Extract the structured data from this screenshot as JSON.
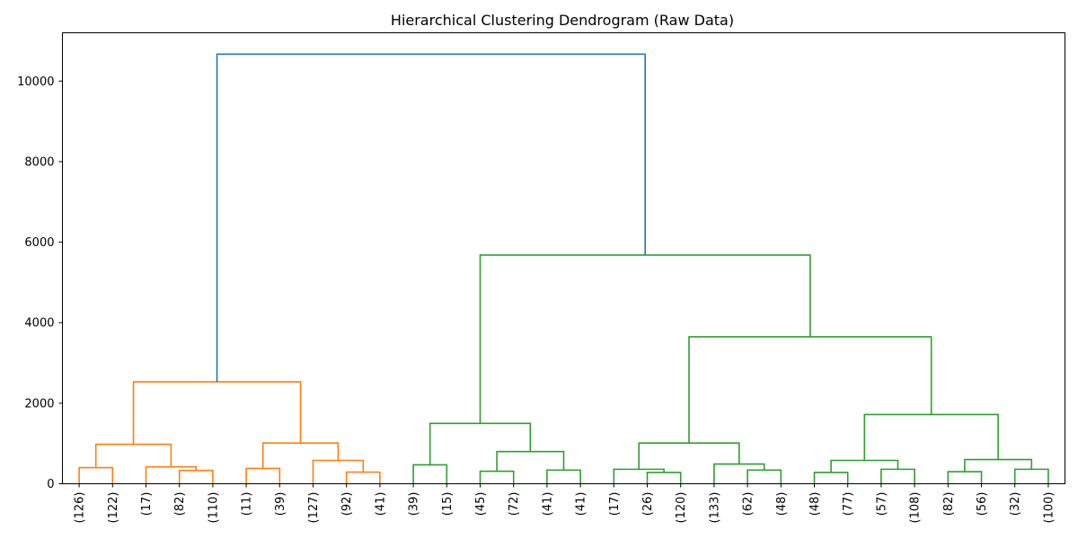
{
  "chart_data": {
    "type": "dendrogram",
    "title": "Hierarchical Clustering Dendrogram (Raw Data)",
    "xlabel": "",
    "ylabel": "",
    "ylim": [
      0,
      11200
    ],
    "yticks": [
      0,
      2000,
      4000,
      6000,
      8000,
      10000
    ],
    "grid": false,
    "leaf_labels": [
      "(126)",
      "(122)",
      "(17)",
      "(82)",
      "(110)",
      "(11)",
      "(39)",
      "(127)",
      "(92)",
      "(41)",
      "(39)",
      "(15)",
      "(45)",
      "(72)",
      "(41)",
      "(41)",
      "(17)",
      "(26)",
      "(120)",
      "(133)",
      "(62)",
      "(48)",
      "(48)",
      "(77)",
      "(57)",
      "(108)",
      "(82)",
      "(56)",
      "(32)",
      "(100)"
    ],
    "colors": {
      "cluster_1": "#ff7f0e",
      "cluster_2": "#2ca02c",
      "above_threshold": "#1f77b4"
    },
    "merges": [
      {
        "id": "n1",
        "left": "L0",
        "right": "L1",
        "height": 400,
        "color": "cluster_1"
      },
      {
        "id": "n2",
        "left": "L3",
        "right": "L4",
        "height": 330,
        "color": "cluster_1"
      },
      {
        "id": "n3",
        "left": "L2",
        "right": "n2",
        "height": 420,
        "color": "cluster_1"
      },
      {
        "id": "n4",
        "left": "n1",
        "right": "n3",
        "height": 980,
        "color": "cluster_1"
      },
      {
        "id": "n5",
        "left": "L5",
        "right": "L6",
        "height": 380,
        "color": "cluster_1"
      },
      {
        "id": "n6",
        "left": "L8",
        "right": "L9",
        "height": 290,
        "color": "cluster_1"
      },
      {
        "id": "n7",
        "left": "L7",
        "right": "n6",
        "height": 580,
        "color": "cluster_1"
      },
      {
        "id": "n8",
        "left": "n5",
        "right": "n7",
        "height": 1010,
        "color": "cluster_1"
      },
      {
        "id": "n9",
        "left": "n4",
        "right": "n8",
        "height": 2530,
        "color": "cluster_1"
      },
      {
        "id": "n10",
        "left": "L10",
        "right": "L11",
        "height": 470,
        "color": "cluster_2"
      },
      {
        "id": "n11",
        "left": "L12",
        "right": "L13",
        "height": 310,
        "color": "cluster_2"
      },
      {
        "id": "n12",
        "left": "L14",
        "right": "L15",
        "height": 340,
        "color": "cluster_2"
      },
      {
        "id": "n13",
        "left": "n11",
        "right": "n12",
        "height": 800,
        "color": "cluster_2"
      },
      {
        "id": "n14",
        "left": "n10",
        "right": "n13",
        "height": 1500,
        "color": "cluster_2"
      },
      {
        "id": "n15",
        "left": "L17",
        "right": "L18",
        "height": 280,
        "color": "cluster_2"
      },
      {
        "id": "n16",
        "left": "L16",
        "right": "n15",
        "height": 360,
        "color": "cluster_2"
      },
      {
        "id": "n17",
        "left": "L20",
        "right": "L21",
        "height": 340,
        "color": "cluster_2"
      },
      {
        "id": "n18",
        "left": "L19",
        "right": "n17",
        "height": 490,
        "color": "cluster_2"
      },
      {
        "id": "n19",
        "left": "n16",
        "right": "n18",
        "height": 1010,
        "color": "cluster_2"
      },
      {
        "id": "n20",
        "left": "L22",
        "right": "L23",
        "height": 280,
        "color": "cluster_2"
      },
      {
        "id": "n21",
        "left": "L24",
        "right": "L25",
        "height": 360,
        "color": "cluster_2"
      },
      {
        "id": "n22",
        "left": "n20",
        "right": "n21",
        "height": 580,
        "color": "cluster_2"
      },
      {
        "id": "n23",
        "left": "L26",
        "right": "L27",
        "height": 300,
        "color": "cluster_2"
      },
      {
        "id": "n24",
        "left": "L28",
        "right": "L29",
        "height": 360,
        "color": "cluster_2"
      },
      {
        "id": "n25",
        "left": "n23",
        "right": "n24",
        "height": 600,
        "color": "cluster_2"
      },
      {
        "id": "n26",
        "left": "n22",
        "right": "n25",
        "height": 1720,
        "color": "cluster_2"
      },
      {
        "id": "n27",
        "left": "n19",
        "right": "n26",
        "height": 3650,
        "color": "cluster_2"
      },
      {
        "id": "n28",
        "left": "n14",
        "right": "n27",
        "height": 5680,
        "color": "cluster_2"
      },
      {
        "id": "n29",
        "left": "n9",
        "right": "n28",
        "height": 10670,
        "color": "above_threshold"
      }
    ]
  }
}
